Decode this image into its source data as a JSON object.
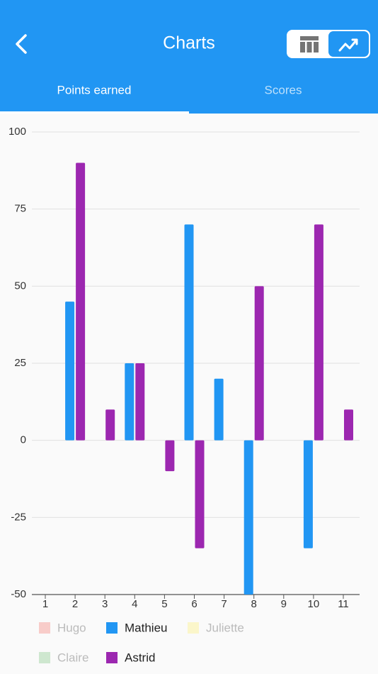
{
  "app_bar": {
    "title": "Charts"
  },
  "tabs": [
    "Points earned",
    "Scores"
  ],
  "chart_data": {
    "type": "bar",
    "categories": [
      "1",
      "2",
      "3",
      "4",
      "5",
      "6",
      "7",
      "8",
      "9",
      "10",
      "11"
    ],
    "series": [
      {
        "name": "Hugo",
        "color": "#f44336",
        "hidden": true,
        "values": [
          null,
          null,
          null,
          null,
          null,
          null,
          null,
          null,
          null,
          null,
          null
        ]
      },
      {
        "name": "Mathieu",
        "color": "#2196f3",
        "values": [
          null,
          45,
          null,
          25,
          null,
          70,
          20,
          -50,
          null,
          -35,
          null
        ]
      },
      {
        "name": "Juliette",
        "color": "#ffeb3b",
        "hidden": true,
        "values": [
          null,
          null,
          null,
          null,
          null,
          null,
          null,
          null,
          null,
          null,
          null
        ]
      },
      {
        "name": "Claire",
        "color": "#4caf50",
        "hidden": true,
        "values": [
          null,
          null,
          null,
          null,
          null,
          null,
          null,
          null,
          null,
          null,
          null
        ]
      },
      {
        "name": "Astrid",
        "color": "#9c27b0",
        "values": [
          null,
          90,
          10,
          25,
          -10,
          -35,
          null,
          50,
          null,
          70,
          10
        ]
      }
    ],
    "ylim": [
      -50,
      100
    ],
    "yticks": [
      -50,
      -25,
      0,
      25,
      50,
      75,
      100
    ],
    "grid": true
  }
}
